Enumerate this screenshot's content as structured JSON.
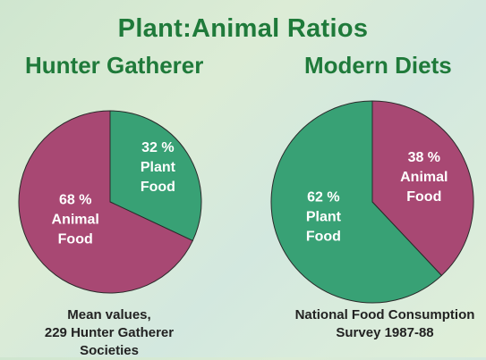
{
  "title": "Plant:Animal Ratios",
  "colors": {
    "animal": "#a84873",
    "plant": "#38a175",
    "title": "#1f7a3a"
  },
  "chart_data": [
    {
      "type": "pie",
      "title": "Hunter Gatherer",
      "slices": [
        {
          "label": [
            "32 %",
            "Plant",
            "Food"
          ],
          "value": 32,
          "category": "Plant Food"
        },
        {
          "label": [
            "68 %",
            "Animal",
            "Food"
          ],
          "value": 68,
          "category": "Animal Food"
        }
      ],
      "caption": [
        "Mean values,",
        "229 Hunter Gatherer",
        "Societies"
      ]
    },
    {
      "type": "pie",
      "title": "Modern Diets",
      "slices": [
        {
          "label": [
            "38 %",
            "Animal",
            "Food"
          ],
          "value": 38,
          "category": "Animal Food"
        },
        {
          "label": [
            "62 %",
            "Plant",
            "Food"
          ],
          "value": 62,
          "category": "Plant Food"
        }
      ],
      "caption": [
        "National Food Consumption",
        "Survey  1987-88"
      ]
    }
  ]
}
